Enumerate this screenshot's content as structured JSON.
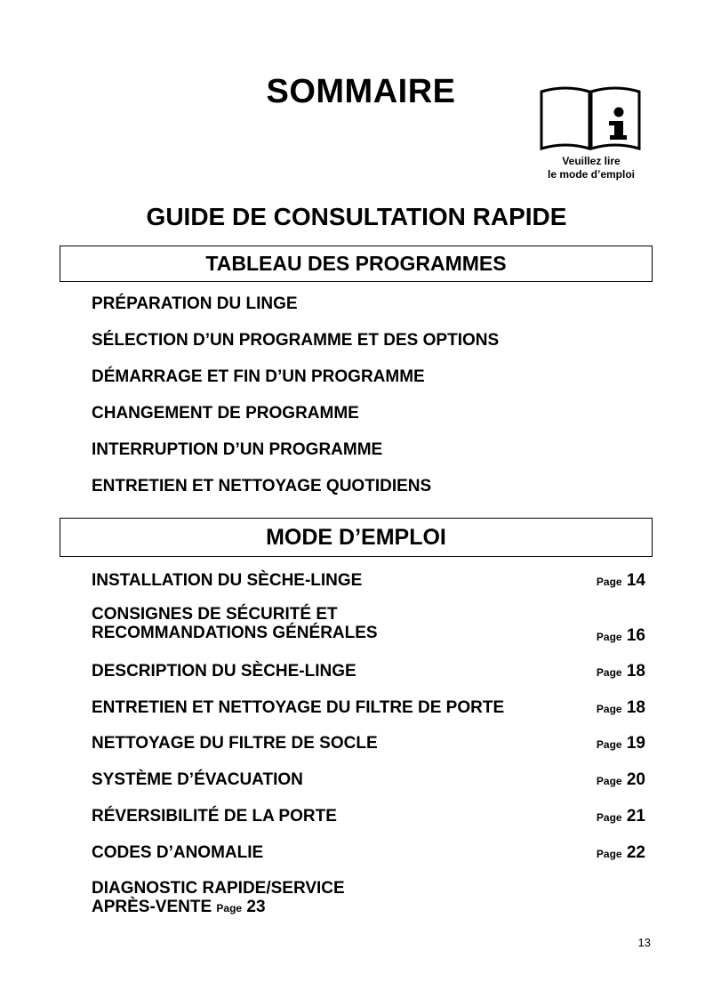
{
  "title": "SOMMAIRE",
  "notice": {
    "icon": "read-manual-info-icon",
    "line1": "Veuillez lire",
    "line2": "le mode d’emploi"
  },
  "guide_title": "GUIDE DE CONSULTATION RAPIDE",
  "section1": {
    "heading": "TABLEAU DES PROGRAMMES",
    "items": [
      "PRÉPARATION DU LINGE",
      "SÉLECTION D’UN PROGRAMME ET DES OPTIONS",
      "DÉMARRAGE ET FIN D’UN PROGRAMME",
      "CHANGEMENT DE PROGRAMME",
      "INTERRUPTION D’UN PROGRAMME",
      "ENTRETIEN ET NETTOYAGE QUOTIDIENS"
    ]
  },
  "section2": {
    "heading": "MODE D’EMPLOI",
    "page_label": "Page",
    "items": [
      {
        "label": "INSTALLATION DU SÈCHE-LINGE",
        "page": "14"
      },
      {
        "label": "CONSIGNES DE SÉCURITÉ ET",
        "label2": "RECOMMANDATIONS GÉNÉRALES",
        "page": "16"
      },
      {
        "label": "DESCRIPTION DU SÈCHE-LINGE",
        "page": "18"
      },
      {
        "label": "ENTRETIEN ET NETTOYAGE DU FILTRE DE PORTE",
        "page": "18"
      },
      {
        "label": "NETTOYAGE DU FILTRE DE SOCLE",
        "page": "19"
      },
      {
        "label": "SYSTÈME D’ÉVACUATION",
        "page": "20"
      },
      {
        "label": "RÉVERSIBILITÉ DE LA PORTE",
        "page": "21"
      },
      {
        "label": "CODES D’ANOMALIE",
        "page": "22"
      },
      {
        "label": "DIAGNOSTIC RAPIDE/SERVICE",
        "label2": "APRÈS-VENTE",
        "page": "23"
      }
    ]
  },
  "page_number": "13"
}
